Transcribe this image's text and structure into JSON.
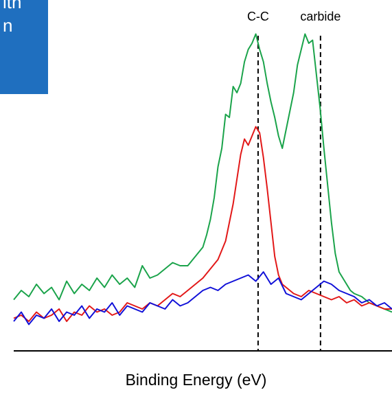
{
  "panel": {
    "text_line1": "ith",
    "text_line2": "n",
    "color": "#1f6fbf"
  },
  "chart_data": {
    "type": "line",
    "title": "",
    "xlabel": "Binding Energy (eV)",
    "ylabel": "",
    "xlim": [
      0,
      100
    ],
    "ylim": [
      0,
      100
    ],
    "grid": false,
    "legend": "none",
    "annotations": [
      {
        "label": "C-C",
        "x": 64.6
      },
      {
        "label": "carbide",
        "x": 81.1
      }
    ],
    "series": [
      {
        "color": "#1aa34a",
        "x": [
          0,
          2,
          4,
          6,
          8,
          10,
          12,
          14,
          16,
          18,
          20,
          22,
          24,
          26,
          28,
          30,
          32,
          34,
          36,
          38,
          40,
          42,
          44,
          46,
          48,
          50,
          51,
          52,
          53,
          54,
          55,
          56,
          57,
          58,
          59,
          60,
          61,
          62,
          63,
          64,
          65,
          66,
          67,
          68,
          69,
          70,
          71,
          72,
          73,
          74,
          75,
          76,
          77,
          78,
          79,
          80,
          81,
          82,
          83,
          84,
          85,
          86,
          87,
          88,
          89,
          90,
          92,
          94,
          96,
          98,
          100
        ],
        "values": [
          13,
          16,
          14,
          18,
          15,
          17,
          13,
          19,
          15,
          18,
          16,
          20,
          17,
          21,
          18,
          20,
          17,
          24,
          20,
          21,
          23,
          25,
          24,
          24,
          27,
          30,
          34,
          39,
          46,
          56,
          62,
          73,
          72,
          82,
          80,
          83,
          90,
          94,
          96,
          99,
          94,
          90,
          83,
          77,
          72,
          66,
          62,
          68,
          74,
          80,
          89,
          94,
          99,
          96,
          97,
          86,
          75,
          62,
          50,
          38,
          28,
          22,
          20,
          18,
          16,
          15,
          14,
          12,
          11,
          10,
          9
        ]
      },
      {
        "color": "#e21818",
        "x": [
          0,
          2,
          4,
          6,
          8,
          10,
          12,
          14,
          16,
          18,
          20,
          22,
          24,
          26,
          28,
          30,
          32,
          34,
          36,
          38,
          40,
          42,
          44,
          46,
          48,
          50,
          52,
          54,
          56,
          58,
          59,
          60,
          61,
          62,
          63,
          64,
          65,
          66,
          67,
          68,
          69,
          70,
          71,
          72,
          73,
          74,
          76,
          78,
          80,
          82,
          84,
          86,
          88,
          90,
          92,
          94,
          96,
          98,
          100
        ],
        "values": [
          7,
          8,
          6,
          9,
          7,
          8,
          10,
          6,
          9,
          8,
          11,
          9,
          10,
          8,
          9,
          12,
          11,
          10,
          12,
          11,
          13,
          15,
          14,
          16,
          18,
          20,
          23,
          26,
          32,
          44,
          52,
          60,
          65,
          63,
          66,
          69,
          67,
          59,
          49,
          38,
          27,
          21,
          18,
          17,
          16,
          15,
          14,
          16,
          15,
          14,
          13,
          14,
          12,
          13,
          11,
          12,
          11,
          10,
          10
        ]
      },
      {
        "color": "#1010d8",
        "x": [
          0,
          2,
          4,
          6,
          8,
          10,
          12,
          14,
          16,
          18,
          20,
          22,
          24,
          26,
          28,
          30,
          32,
          34,
          36,
          38,
          40,
          42,
          44,
          46,
          48,
          50,
          52,
          54,
          56,
          58,
          60,
          62,
          64,
          66,
          68,
          70,
          72,
          74,
          76,
          78,
          80,
          82,
          84,
          86,
          88,
          90,
          92,
          94,
          96,
          98,
          100
        ],
        "values": [
          6,
          9,
          5,
          8,
          7,
          10,
          6,
          9,
          8,
          11,
          7,
          10,
          9,
          12,
          8,
          11,
          10,
          9,
          12,
          11,
          10,
          13,
          11,
          12,
          14,
          16,
          17,
          16,
          18,
          19,
          20,
          21,
          19,
          22,
          18,
          20,
          15,
          14,
          13,
          15,
          17,
          19,
          18,
          16,
          15,
          14,
          12,
          13,
          11,
          12,
          10
        ]
      }
    ]
  }
}
